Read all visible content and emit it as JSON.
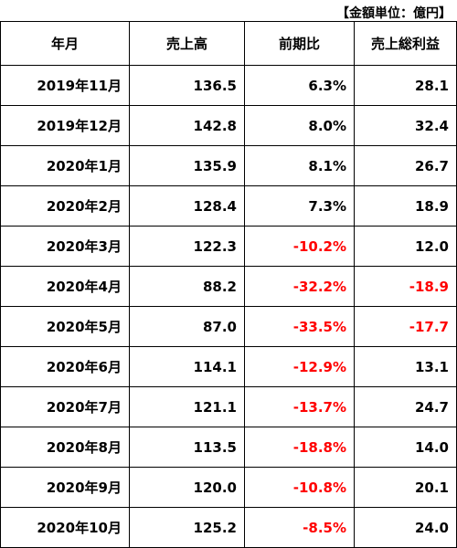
{
  "unit_label": "【金額単位：億円】",
  "headers": [
    "年月",
    "売上高",
    "前期比",
    "売上総利益"
  ],
  "rows": [
    {
      "month": "2019年11月",
      "sales": "136.5",
      "yoy": "6.3%",
      "profit": "28.1"
    },
    {
      "month": "2019年12月",
      "sales": "142.8",
      "yoy": "8.0%",
      "profit": "32.4"
    },
    {
      "month": "2020年1月",
      "sales": "135.9",
      "yoy": "8.1%",
      "profit": "26.7"
    },
    {
      "month": "2020年2月",
      "sales": "128.4",
      "yoy": "7.3%",
      "profit": "18.9"
    },
    {
      "month": "2020年3月",
      "sales": "122.3",
      "yoy": "-10.2%",
      "profit": "12.0"
    },
    {
      "month": "2020年4月",
      "sales": "88.2",
      "yoy": "-32.2%",
      "profit": "-18.9"
    },
    {
      "month": "2020年5月",
      "sales": "87.0",
      "yoy": "-33.5%",
      "profit": "-17.7"
    },
    {
      "month": "2020年6月",
      "sales": "114.1",
      "yoy": "-12.9%",
      "profit": "13.1"
    },
    {
      "month": "2020年7月",
      "sales": "121.1",
      "yoy": "-13.7%",
      "profit": "24.7"
    },
    {
      "month": "2020年8月",
      "sales": "113.5",
      "yoy": "-18.8%",
      "profit": "14.0"
    },
    {
      "month": "2020年9月",
      "sales": "120.0",
      "yoy": "-10.8%",
      "profit": "20.1"
    },
    {
      "month": "2020年10月",
      "sales": "125.2",
      "yoy": "-8.5%",
      "profit": "24.0"
    }
  ],
  "colors": {
    "negative": "#ff0000",
    "text": "#000000"
  }
}
